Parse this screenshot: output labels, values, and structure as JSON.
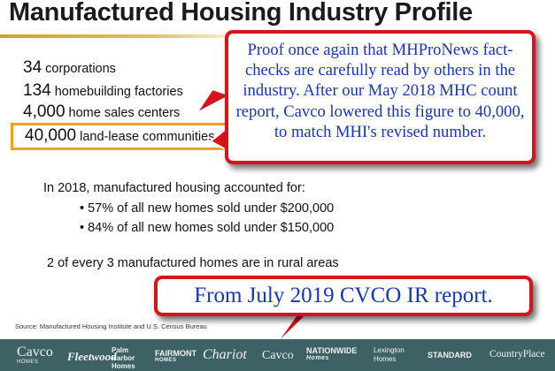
{
  "slide": {
    "title": "Manufactured Housing Industry Profile",
    "stats": [
      {
        "number": "34",
        "label": "corporations"
      },
      {
        "number": "134",
        "label": "homebuilding factories"
      },
      {
        "number": "4,000",
        "label": "home sales centers"
      },
      {
        "number": "40,000",
        "label": "land-lease communities"
      }
    ],
    "accounted_intro": "In 2018, manufactured housing accounted for:",
    "bullets": [
      "• 57% of all new homes sold under $200,000",
      "• 84% of all new homes sold under $150,000"
    ],
    "rural_note": "2 of every 3 manufactured homes are in rural areas",
    "source": "Source:  Manufactured Housing Institute and U.S. Census Bureau"
  },
  "callouts": {
    "proof": "Proof once again that MHProNews fact-checks are carefully read by others in the industry.  After our May 2018 MHC count report, Cavco lowered this figure to 40,000, to match MHI's revised number.",
    "source_note": "From July 2019 CVCO IR report."
  },
  "brands": {
    "cavco": "Cavco",
    "cavco_sub": "HOMES",
    "fleetwood": "Fleetwood",
    "palm_harbor": "Palm Harbor Homes",
    "fairmont": "FAIRMONT",
    "fairmont_sub": "HOMES",
    "chariot": "Chariot",
    "cavco_park": "Cavco",
    "nationwide": "NATIONWIDE",
    "nationwide_sub": "Homes",
    "lexington": "Lexington Homes",
    "standard": "STANDARD",
    "countryplace": "CountryPlace"
  },
  "colors": {
    "callout_border": "#d5141b",
    "callout_text": "#1534c8",
    "highlight_box": "#f0a21b",
    "gold_rule": "#c9a227",
    "logo_bar": "#3d6164"
  }
}
